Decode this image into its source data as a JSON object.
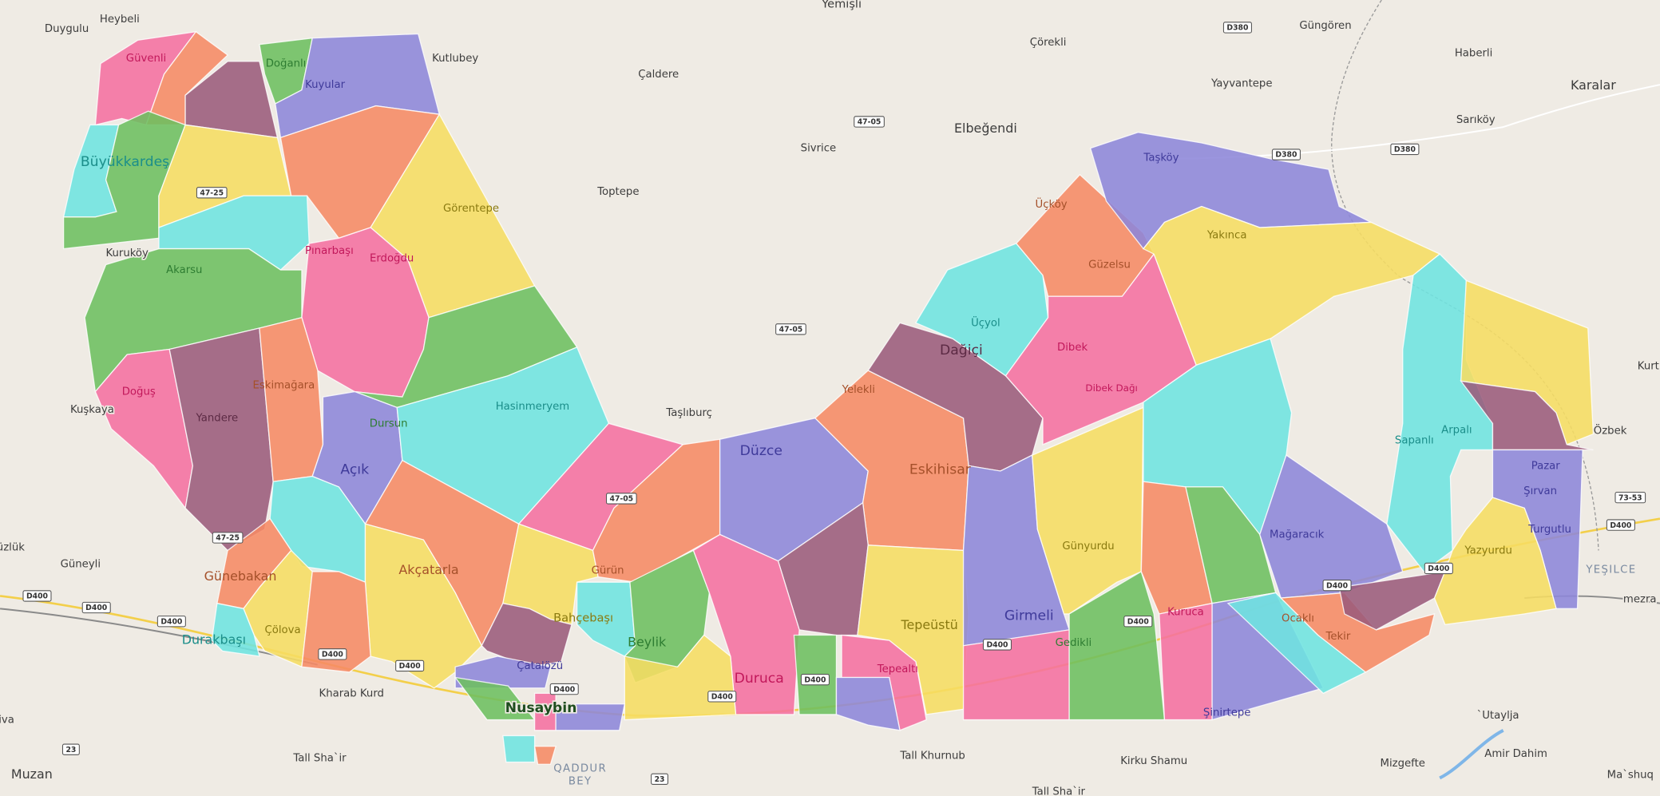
{
  "places": [
    "Duygulu",
    "Heybeli",
    "Yemişli",
    "Çörekli",
    "Güngören",
    "Haberli",
    "Karalar",
    "Kutlubey",
    "Çaldere",
    "Yayvantepe",
    "Sarıköy",
    "Sivrice",
    "Elbeğendi",
    "Toptepe",
    "Kuruköy",
    "Kuşkaya",
    "Taşlıburç",
    "Güneyli",
    "Kurt",
    "Özbek",
    "YEŞILCE",
    "mezra",
    "Kharab Kurd",
    "Tall Sha`ir",
    "Muzan",
    "Tall Khurnub",
    "Kirku Shamu",
    "Tall Sha`ir",
    "Mizgefte",
    "Amir Dahim",
    "`Utaylja",
    "Ma`shuq",
    "QADDUR",
    "BEY",
    "Nusaybin",
    "üzlük",
    "iva"
  ],
  "neighborhoods": [
    "Güvenli",
    "Doğanlı",
    "Kuyular",
    "Büyükkardeş",
    "Görentepe",
    "Pınarbaşı",
    "Erdoğdu",
    "Akarsu",
    "Doğuş",
    "Yandere",
    "Eskimağara",
    "Dursun",
    "Hasinmeryem",
    "Açık",
    "Günebakan",
    "Çölova",
    "Durakbaşı",
    "Akçatarla",
    "Çatalözü",
    "Bahçebaşı",
    "Gürün",
    "Beylik",
    "Düzce",
    "Yelekli",
    "Eskihisar",
    "Duruca",
    "Tepeüstü",
    "Tepealtı",
    "Dağiçi",
    "Üçyol",
    "Dibek",
    "Dibek Dağı",
    "Güzelsu",
    "Üçköy",
    "Taşköy",
    "Yakınca",
    "Sapanlı",
    "Arpalı",
    "Pazar",
    "Şırvan",
    "Turgutlu",
    "Yazyurdu",
    "Mağaracık",
    "Günyurdu",
    "Girmeli",
    "Gedikli",
    "Kuruca",
    "Ocaklı",
    "Tekir",
    "Şinirtepe"
  ],
  "road_shields": [
    "47-25",
    "47-25",
    "47-05",
    "47-05",
    "47-05",
    "D380",
    "D380",
    "D380",
    "73-53",
    "23",
    "23",
    "D400",
    "D400",
    "D400",
    "D400",
    "D400",
    "D400",
    "D400",
    "D400",
    "D400",
    "D400",
    "D400",
    "D400",
    "D400"
  ]
}
